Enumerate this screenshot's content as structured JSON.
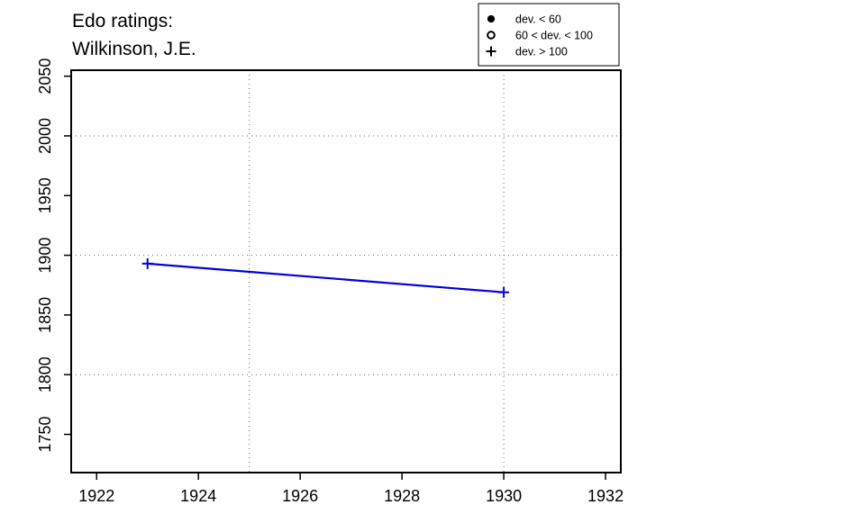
{
  "chart_data": {
    "type": "line",
    "title_line1": "Edo ratings:",
    "title_line2": "Wilkinson, J.E.",
    "xlabel": "",
    "ylabel": "",
    "xlim": [
      1921.5,
      1932.3
    ],
    "ylim": [
      1718,
      2055
    ],
    "x_ticks": [
      "1922",
      "1924",
      "1926",
      "1928",
      "1930",
      "1932"
    ],
    "y_ticks": [
      "1750",
      "1800",
      "1850",
      "1900",
      "1950",
      "2000",
      "2050"
    ],
    "grid_x": [
      1925,
      1930
    ],
    "grid_y": [
      1800,
      1900,
      2000
    ],
    "grid": "dotted",
    "legend_position": "top-right",
    "legend": [
      {
        "marker": "filled-circle",
        "label": "dev. < 60"
      },
      {
        "marker": "open-circle",
        "label": "60 < dev. < 100"
      },
      {
        "marker": "plus",
        "label": "dev. > 100"
      }
    ],
    "series": [
      {
        "color": "#0000dd",
        "points": [
          {
            "x": 1923,
            "y": 1893,
            "marker": "plus"
          },
          {
            "x": 1930,
            "y": 1869,
            "marker": "plus"
          }
        ]
      }
    ]
  }
}
